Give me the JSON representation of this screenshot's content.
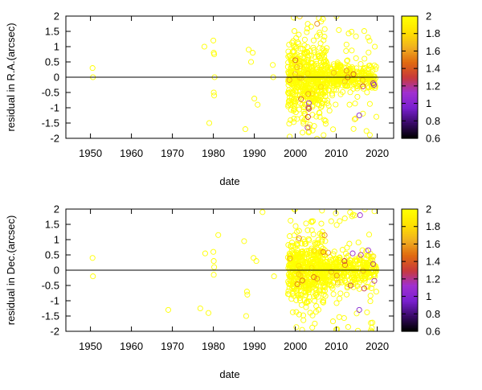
{
  "chart_data": [
    {
      "type": "scatter",
      "xlabel": "date",
      "ylabel": "residual in R.A.(arcsec)",
      "xlim": [
        1944,
        2024
      ],
      "ylim": [
        -2,
        2
      ],
      "xticks": [
        "1950",
        "1960",
        "1970",
        "1980",
        "1990",
        "2000",
        "2010",
        "2020"
      ],
      "yticks": [
        "-2",
        "-1.5",
        "-1",
        "-0.5",
        "0",
        "0.5",
        "1",
        "1.5",
        "2"
      ],
      "colorbar": {
        "range": [
          0.6,
          2
        ],
        "ticks": [
          "0.6",
          "0.8",
          "1",
          "1.2",
          "1.4",
          "1.6",
          "1.8",
          "2"
        ],
        "colors": [
          "#000000",
          "#3a0a6a",
          "#7a20d0",
          "#a030d0",
          "#c83a3a",
          "#e06a10",
          "#f0b020",
          "#ffe000",
          "#ffff00"
        ]
      },
      "zero_line": true,
      "seed": 17,
      "points": [
        {
          "x": 1950.5,
          "y": 0.3,
          "c": 2
        },
        {
          "x": 1950.6,
          "y": 0.0,
          "c": 2
        },
        {
          "x": 1977.8,
          "y": 1.0,
          "c": 2
        },
        {
          "x": 1979.0,
          "y": -1.5,
          "c": 2
        },
        {
          "x": 1980.0,
          "y": 1.2,
          "c": 2
        },
        {
          "x": 1980.1,
          "y": 0.8,
          "c": 2
        },
        {
          "x": 1980.2,
          "y": 0.75,
          "c": 2
        },
        {
          "x": 1980.1,
          "y": -0.5,
          "c": 2
        },
        {
          "x": 1980.2,
          "y": -0.6,
          "c": 2
        },
        {
          "x": 1980.3,
          "y": 0.0,
          "c": 2
        },
        {
          "x": 1987.8,
          "y": -1.7,
          "c": 2
        },
        {
          "x": 1988.6,
          "y": 0.9,
          "c": 2
        },
        {
          "x": 1989.2,
          "y": 0.5,
          "c": 2
        },
        {
          "x": 1989.6,
          "y": 0.8,
          "c": 2
        },
        {
          "x": 1990.0,
          "y": -0.7,
          "c": 2
        },
        {
          "x": 1990.8,
          "y": -0.9,
          "c": 2
        },
        {
          "x": 1994.5,
          "y": 0.4,
          "c": 2
        },
        {
          "x": 1994.6,
          "y": 0.0,
          "c": 2
        },
        {
          "x": 2003.0,
          "y": -1.65,
          "c": 1.2
        },
        {
          "x": 2003.1,
          "y": -1.3,
          "c": 1.3
        },
        {
          "x": 2003.2,
          "y": -1.0,
          "c": 1.2
        },
        {
          "x": 2003.3,
          "y": -0.85,
          "c": 1.1
        },
        {
          "x": 2015.6,
          "y": -1.25,
          "c": 1.0
        },
        {
          "x": 2019.2,
          "y": -0.25,
          "c": 1.0
        },
        {
          "x": 2019.0,
          "y": -0.2,
          "c": 1.2
        },
        {
          "x": 2014.2,
          "y": 0.1,
          "c": 1.4
        },
        {
          "x": 2016.5,
          "y": -0.3,
          "c": 1.3
        },
        {
          "x": 2012.8,
          "y": 0.0,
          "c": 1.5
        }
      ],
      "clusters": [
        {
          "x0": 1998.2,
          "x1": 2007.5,
          "n": 520,
          "sd": 0.55
        },
        {
          "x0": 2007.5,
          "x1": 2011.0,
          "n": 110,
          "sd": 0.22
        },
        {
          "x0": 2011.0,
          "x1": 2019.8,
          "n": 200,
          "sd": 0.2
        }
      ]
    },
    {
      "type": "scatter",
      "xlabel": "date",
      "ylabel": "residual in Dec.(arcsec)",
      "xlim": [
        1944,
        2024
      ],
      "ylim": [
        -2,
        2
      ],
      "xticks": [
        "1950",
        "1960",
        "1970",
        "1980",
        "1990",
        "2000",
        "2010",
        "2020"
      ],
      "yticks": [
        "-2",
        "-1.5",
        "-1",
        "-0.5",
        "0",
        "0.5",
        "1",
        "1.5",
        "2"
      ],
      "colorbar": {
        "range": [
          0.6,
          2
        ],
        "ticks": [
          "0.6",
          "0.8",
          "1",
          "1.2",
          "1.4",
          "1.6",
          "1.8",
          "2"
        ],
        "colors": [
          "#000000",
          "#3a0a6a",
          "#7a20d0",
          "#a030d0",
          "#c83a3a",
          "#e06a10",
          "#f0b020",
          "#ffe000",
          "#ffff00"
        ]
      },
      "zero_line": true,
      "seed": 41,
      "points": [
        {
          "x": 1950.5,
          "y": 0.4,
          "c": 2
        },
        {
          "x": 1950.6,
          "y": -0.2,
          "c": 2
        },
        {
          "x": 1969.0,
          "y": -1.3,
          "c": 2
        },
        {
          "x": 1976.8,
          "y": -1.25,
          "c": 2
        },
        {
          "x": 1978.0,
          "y": 0.55,
          "c": 2
        },
        {
          "x": 1978.8,
          "y": -1.4,
          "c": 2
        },
        {
          "x": 1980.0,
          "y": 0.6,
          "c": 2
        },
        {
          "x": 1980.1,
          "y": 0.3,
          "c": 2
        },
        {
          "x": 1980.2,
          "y": 0.1,
          "c": 2
        },
        {
          "x": 1980.1,
          "y": -0.15,
          "c": 2
        },
        {
          "x": 1981.2,
          "y": 1.15,
          "c": 2
        },
        {
          "x": 1987.5,
          "y": 0.95,
          "c": 2
        },
        {
          "x": 1988.2,
          "y": -0.7,
          "c": 2
        },
        {
          "x": 1988.3,
          "y": -0.8,
          "c": 2
        },
        {
          "x": 1988.0,
          "y": -1.5,
          "c": 2
        },
        {
          "x": 1989.8,
          "y": 0.4,
          "c": 2
        },
        {
          "x": 1990.5,
          "y": 0.3,
          "c": 2
        },
        {
          "x": 1992.0,
          "y": 1.9,
          "c": 2
        },
        {
          "x": 1994.8,
          "y": -0.2,
          "c": 2
        },
        {
          "x": 2015.8,
          "y": 1.8,
          "c": 1.1
        },
        {
          "x": 2015.6,
          "y": -1.3,
          "c": 1.0
        },
        {
          "x": 2014.0,
          "y": 0.55,
          "c": 1.1
        },
        {
          "x": 2016.0,
          "y": 0.5,
          "c": 1.2
        },
        {
          "x": 2017.8,
          "y": 0.65,
          "c": 1.1
        },
        {
          "x": 2013.5,
          "y": -0.5,
          "c": 1.3
        },
        {
          "x": 2019.3,
          "y": -0.35,
          "c": 1.2
        },
        {
          "x": 2012.0,
          "y": 0.3,
          "c": 1.3
        },
        {
          "x": 2019.0,
          "y": 0.2,
          "c": 1.2
        },
        {
          "x": 2016.8,
          "y": -0.6,
          "c": 1.3
        }
      ],
      "clusters": [
        {
          "x0": 1998.2,
          "x1": 2007.5,
          "n": 520,
          "sd": 0.5
        },
        {
          "x0": 2007.5,
          "x1": 2011.0,
          "n": 110,
          "sd": 0.25
        },
        {
          "x0": 2011.0,
          "x1": 2019.8,
          "n": 220,
          "sd": 0.28
        }
      ]
    }
  ]
}
